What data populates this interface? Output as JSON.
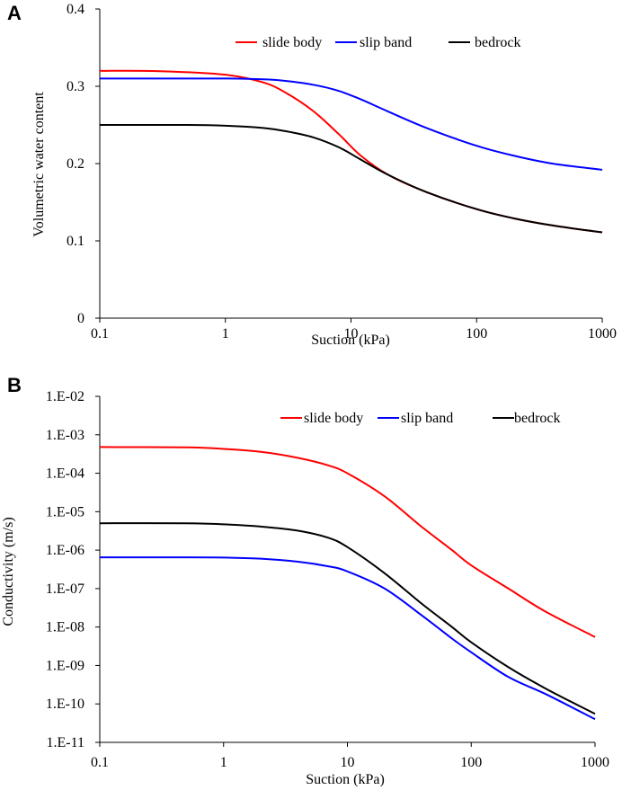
{
  "chart_data": [
    {
      "panel": "A",
      "type": "line",
      "xscale": "log",
      "xlim": [
        0.1,
        1000
      ],
      "ylim": [
        0,
        0.4
      ],
      "xticks": [
        "0.1",
        "1",
        "10",
        "100",
        "1000"
      ],
      "yticks": [
        "0",
        "0.1",
        "0.2",
        "0.3",
        "0.4"
      ],
      "xlabel": "Suction (kPa)",
      "ylabel": "Volumetric water content",
      "legend_position": "top-right",
      "series": [
        {
          "name": "slide body",
          "color": "#ff0000",
          "x": [
            0.1,
            0.3,
            1,
            2,
            3,
            5,
            8,
            12,
            20,
            40,
            100,
            200,
            400,
            1000
          ],
          "values": [
            0.32,
            0.3195,
            0.315,
            0.305,
            0.292,
            0.268,
            0.238,
            0.21,
            0.185,
            0.163,
            0.141,
            0.129,
            0.12,
            0.111
          ]
        },
        {
          "name": "slip band",
          "color": "#0000ff",
          "x": [
            0.1,
            0.5,
            1,
            2,
            3,
            5,
            8,
            12,
            20,
            40,
            100,
            200,
            400,
            1000
          ],
          "values": [
            0.31,
            0.31,
            0.31,
            0.309,
            0.307,
            0.302,
            0.294,
            0.283,
            0.267,
            0.246,
            0.223,
            0.21,
            0.2,
            0.192
          ]
        },
        {
          "name": "bedrock",
          "color": "#000000",
          "x": [
            0.1,
            0.5,
            1,
            2,
            3,
            5,
            8,
            12,
            20,
            40,
            100,
            200,
            400,
            1000
          ],
          "values": [
            0.25,
            0.25,
            0.249,
            0.246,
            0.242,
            0.234,
            0.221,
            0.205,
            0.185,
            0.163,
            0.141,
            0.129,
            0.12,
            0.111
          ]
        }
      ]
    },
    {
      "panel": "B",
      "type": "line",
      "xscale": "log",
      "yscale": "log",
      "xlim": [
        0.1,
        1000
      ],
      "ylim": [
        1e-11,
        0.01
      ],
      "xticks": [
        "0.1",
        "1",
        "10",
        "100",
        "1000"
      ],
      "yticks": [
        "1.E-11",
        "1.E-10",
        "1.E-09",
        "1.E-08",
        "1.E-07",
        "1.E-06",
        "1.E-05",
        "1.E-04",
        "1.E-03",
        "1.E-02"
      ],
      "xlabel": "Suction (kPa)",
      "ylabel": "Conductivity (m/s)",
      "legend_position": "top-right",
      "series": [
        {
          "name": "slide body",
          "color": "#ff0000",
          "x": [
            0.1,
            0.5,
            1,
            2,
            4,
            7,
            10,
            20,
            40,
            70,
            100,
            200,
            400,
            1000
          ],
          "values": [
            0.00048,
            0.00047,
            0.00043,
            0.00036,
            0.00025,
            0.00016,
            0.0001,
            2.5e-05,
            4e-06,
            1e-06,
            4e-07,
            1e-07,
            2.5e-08,
            5.5e-09
          ]
        },
        {
          "name": "slip band",
          "color": "#0000ff",
          "x": [
            0.1,
            0.5,
            1,
            2,
            4,
            7,
            10,
            20,
            40,
            70,
            100,
            200,
            400,
            1000
          ],
          "values": [
            6.5e-07,
            6.5e-07,
            6.4e-07,
            6e-07,
            5e-07,
            3.8e-07,
            2.8e-07,
            1e-07,
            2e-08,
            5e-09,
            2.2e-09,
            5e-10,
            1.8e-10,
            4e-11
          ]
        },
        {
          "name": "bedrock",
          "color": "#000000",
          "x": [
            0.1,
            0.5,
            1,
            2,
            4,
            7,
            10,
            20,
            40,
            70,
            100,
            200,
            400,
            1000
          ],
          "values": [
            5e-06,
            5e-06,
            4.7e-06,
            4.1e-06,
            3.2e-06,
            2.1e-06,
            1.2e-06,
            2.5e-07,
            4e-08,
            1e-08,
            4e-09,
            9e-10,
            2.5e-10,
            5.5e-11
          ]
        }
      ]
    }
  ]
}
